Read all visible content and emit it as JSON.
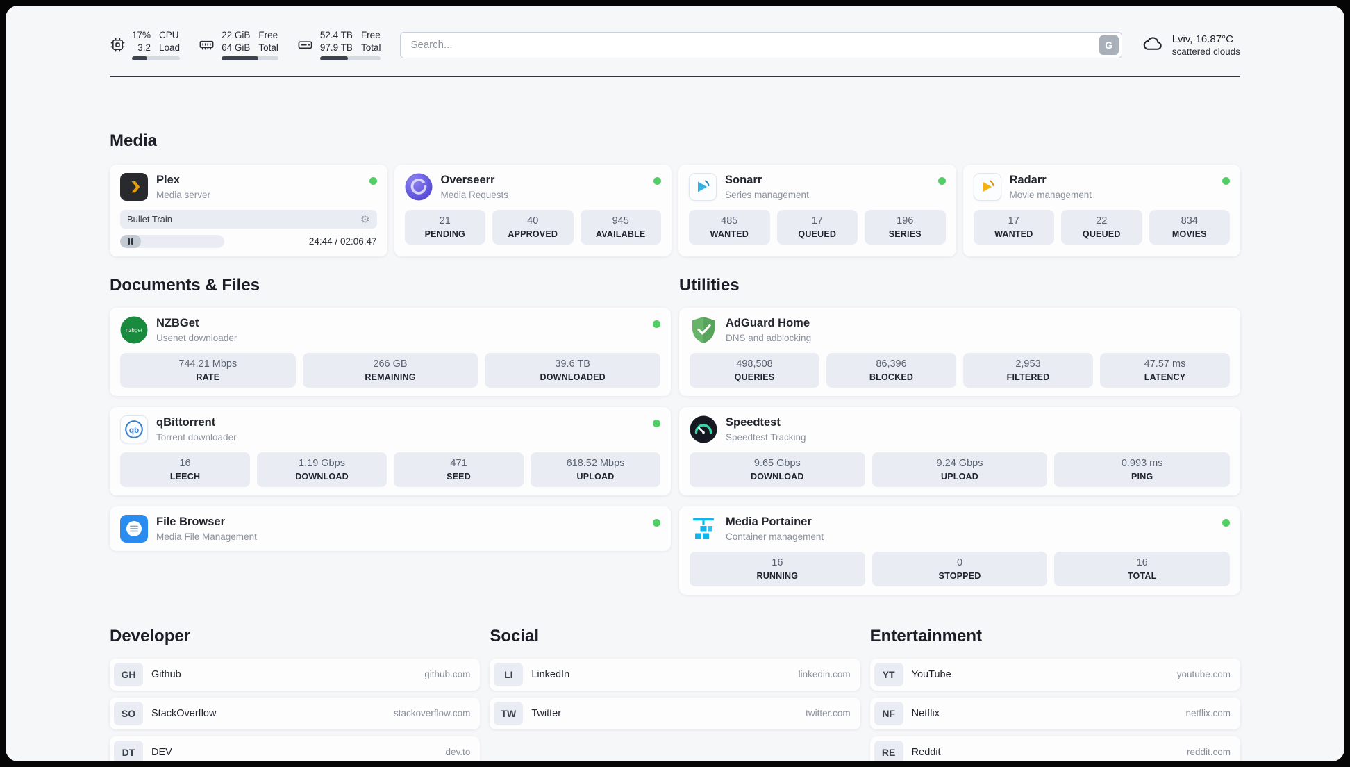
{
  "colors": {
    "status_online": "#51cf66",
    "page_background": "#f6f7f9",
    "card_background": "#fdfdfe",
    "stat_box_background": "#e9edf3",
    "accent_plex": "#e5a00d",
    "accent_overseerr": "#5a4fcf",
    "accent_sonarr": "#33b3e3",
    "accent_radarr": "#f6b10e",
    "accent_nzbget": "#1a8a3f",
    "accent_qbittorrent": "#3e80c6",
    "accent_filebrowser": "#2b8cef",
    "accent_adguard": "#67b36a",
    "accent_speedtest_gauge": "#2fd8a4",
    "accent_portainer": "#10b5ea"
  },
  "icons": {
    "gear": "⚙",
    "cpu": "chip-outline",
    "ram": "memory-outline",
    "disk": "drive-outline",
    "weather": "cloud-outline",
    "pause": "pause-bars",
    "status": "green-dot"
  },
  "topbar": {
    "cpu": {
      "value_top": "17%",
      "value_bottom": "3.2",
      "label_top": "CPU",
      "label_bottom": "Load",
      "bar_fill": "32%"
    },
    "ram": {
      "value_top": "22 GiB",
      "value_bottom": "64 GiB",
      "label_top": "Free",
      "label_bottom": "Total",
      "bar_fill": "65%"
    },
    "disk": {
      "value_top": "52.4 TB",
      "value_bottom": "97.9 TB",
      "label_top": "Free",
      "label_bottom": "Total",
      "bar_fill": "46%"
    },
    "search": {
      "placeholder": "Search...",
      "button_label": "G"
    },
    "weather": {
      "location": "Lviv, 16.87°C",
      "condition": "scattered clouds"
    }
  },
  "sections": {
    "media": {
      "title": "Media",
      "plex": {
        "name": "Plex",
        "subtitle": "Media server",
        "online": true,
        "now_playing": "Bullet Train",
        "time": "24:44 / 02:06:47",
        "progress": "20%"
      },
      "overseerr": {
        "name": "Overseerr",
        "subtitle": "Media Requests",
        "online": true,
        "stats": [
          {
            "value": "21",
            "label": "PENDING"
          },
          {
            "value": "40",
            "label": "APPROVED"
          },
          {
            "value": "945",
            "label": "AVAILABLE"
          }
        ]
      },
      "sonarr": {
        "name": "Sonarr",
        "subtitle": "Series management",
        "online": true,
        "stats": [
          {
            "value": "485",
            "label": "WANTED"
          },
          {
            "value": "17",
            "label": "QUEUED"
          },
          {
            "value": "196",
            "label": "SERIES"
          }
        ]
      },
      "radarr": {
        "name": "Radarr",
        "subtitle": "Movie management",
        "online": true,
        "stats": [
          {
            "value": "17",
            "label": "WANTED"
          },
          {
            "value": "22",
            "label": "QUEUED"
          },
          {
            "value": "834",
            "label": "MOVIES"
          }
        ]
      }
    },
    "documents": {
      "title": "Documents & Files",
      "nzbget": {
        "name": "NZBGet",
        "subtitle": "Usenet downloader",
        "online": true,
        "stats": [
          {
            "value": "744.21 Mbps",
            "label": "RATE"
          },
          {
            "value": "266 GB",
            "label": "REMAINING"
          },
          {
            "value": "39.6 TB",
            "label": "DOWNLOADED"
          }
        ]
      },
      "qbittorrent": {
        "name": "qBittorrent",
        "subtitle": "Torrent downloader",
        "online": true,
        "stats": [
          {
            "value": "16",
            "label": "LEECH"
          },
          {
            "value": "1.19 Gbps",
            "label": "DOWNLOAD"
          },
          {
            "value": "471",
            "label": "SEED"
          },
          {
            "value": "618.52 Mbps",
            "label": "UPLOAD"
          }
        ]
      },
      "filebrowser": {
        "name": "File Browser",
        "subtitle": "Media File Management",
        "online": true
      }
    },
    "utilities": {
      "title": "Utilities",
      "adguard": {
        "name": "AdGuard Home",
        "subtitle": "DNS and adblocking",
        "stats": [
          {
            "value": "498,508",
            "label": "QUERIES"
          },
          {
            "value": "86,396",
            "label": "BLOCKED"
          },
          {
            "value": "2,953",
            "label": "FILTERED"
          },
          {
            "value": "47.57 ms",
            "label": "LATENCY"
          }
        ]
      },
      "speedtest": {
        "name": "Speedtest",
        "subtitle": "Speedtest Tracking",
        "stats": [
          {
            "value": "9.65 Gbps",
            "label": "DOWNLOAD"
          },
          {
            "value": "9.24 Gbps",
            "label": "UPLOAD"
          },
          {
            "value": "0.993 ms",
            "label": "PING"
          }
        ]
      },
      "portainer": {
        "name": "Media Portainer",
        "subtitle": "Container management",
        "online": true,
        "stats": [
          {
            "value": "16",
            "label": "RUNNING"
          },
          {
            "value": "0",
            "label": "STOPPED"
          },
          {
            "value": "16",
            "label": "TOTAL"
          }
        ]
      }
    },
    "developer": {
      "title": "Developer",
      "links": [
        {
          "badge": "GH",
          "name": "Github",
          "domain": "github.com"
        },
        {
          "badge": "SO",
          "name": "StackOverflow",
          "domain": "stackoverflow.com"
        },
        {
          "badge": "DT",
          "name": "DEV",
          "domain": "dev.to"
        }
      ]
    },
    "social": {
      "title": "Social",
      "links": [
        {
          "badge": "LI",
          "name": "LinkedIn",
          "domain": "linkedin.com"
        },
        {
          "badge": "TW",
          "name": "Twitter",
          "domain": "twitter.com"
        }
      ]
    },
    "entertainment": {
      "title": "Entertainment",
      "links": [
        {
          "badge": "YT",
          "name": "YouTube",
          "domain": "youtube.com"
        },
        {
          "badge": "NF",
          "name": "Netflix",
          "domain": "netflix.com"
        },
        {
          "badge": "RE",
          "name": "Reddit",
          "domain": "reddit.com"
        }
      ]
    }
  }
}
